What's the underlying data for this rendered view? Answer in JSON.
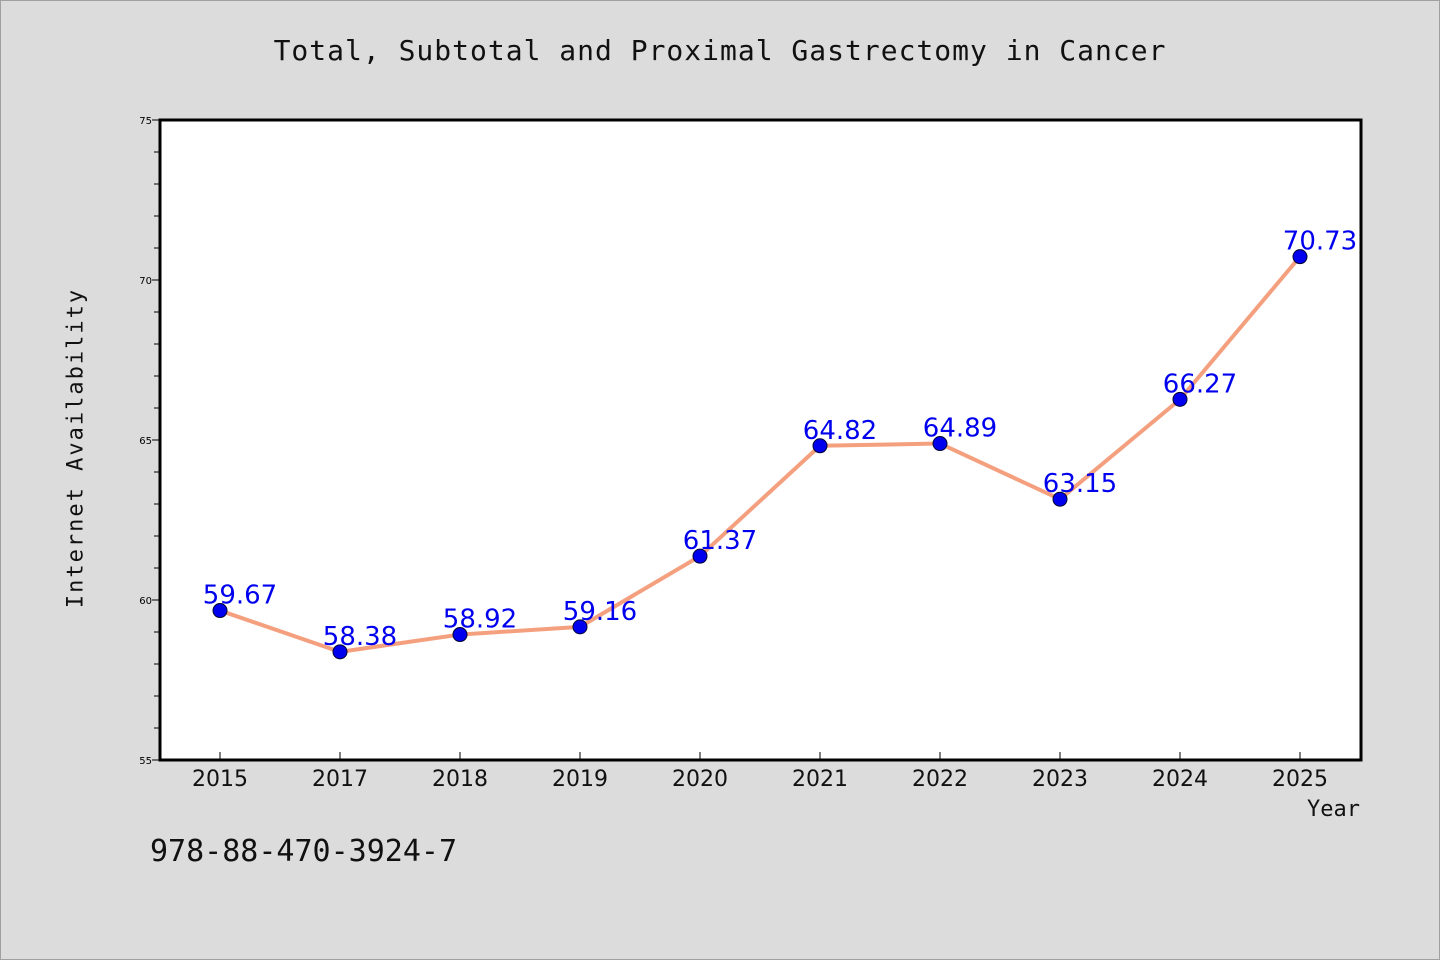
{
  "chart_data": {
    "type": "line",
    "title": "Total, Subtotal and Proximal Gastrectomy in Cancer",
    "xlabel": "Year",
    "ylabel": "Internet Availability",
    "categories": [
      "2015",
      "2017",
      "2018",
      "2019",
      "2020",
      "2021",
      "2022",
      "2023",
      "2024",
      "2025"
    ],
    "values": [
      59.67,
      58.38,
      58.92,
      59.16,
      61.37,
      64.82,
      64.89,
      63.15,
      66.27,
      70.73
    ],
    "value_labels": [
      "59.67",
      "58.38",
      "58.92",
      "59.16",
      "61.37",
      "64.82",
      "64.89",
      "63.15",
      "66.27",
      "70.73"
    ],
    "ylim": [
      55,
      75
    ],
    "yticks": [
      "55",
      "60",
      "65",
      "70",
      "75"
    ],
    "grid": false,
    "line_color": "#f4a07f",
    "marker_color": "#0000ee",
    "label_color": "#0000ee"
  },
  "footer": {
    "code": "978-88-470-3924-7"
  }
}
